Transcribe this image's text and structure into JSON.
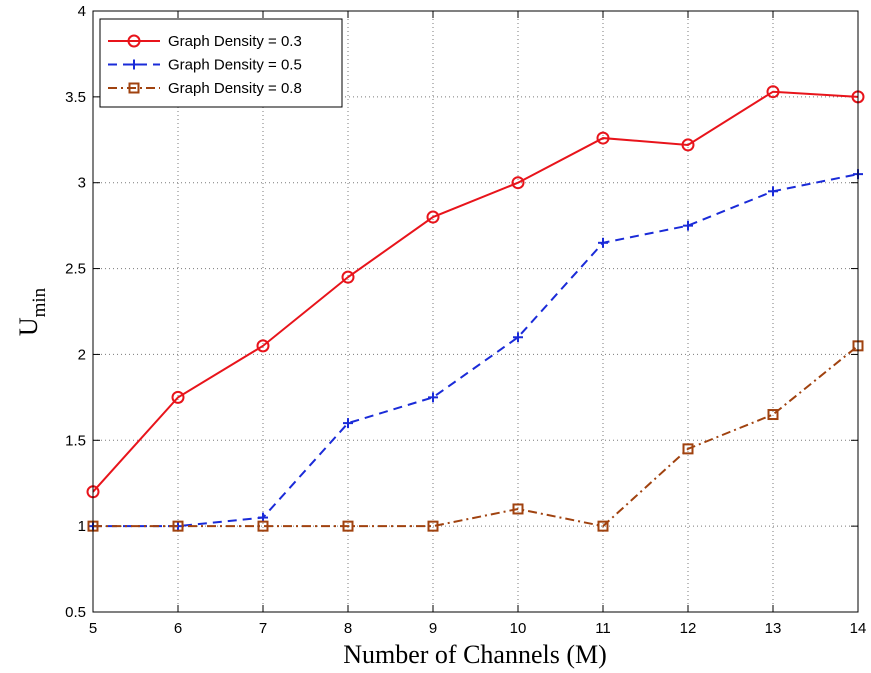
{
  "chart_data": {
    "type": "line",
    "xlabel": "Number of Channels (M)",
    "ylabel_main": "U",
    "ylabel_sub": "min",
    "x": [
      5,
      6,
      7,
      8,
      9,
      10,
      11,
      12,
      13,
      14
    ],
    "xlim": [
      5,
      14
    ],
    "ylim": [
      0.5,
      4
    ],
    "xticks": [
      "5",
      "6",
      "7",
      "8",
      "9",
      "10",
      "11",
      "12",
      "13",
      "14"
    ],
    "yticks": [
      "0.5",
      "1",
      "1.5",
      "2",
      "2.5",
      "3",
      "3.5",
      "4"
    ],
    "grid": true,
    "legend_position": "top-left",
    "series": [
      {
        "name": "Graph Density = 0.3",
        "values": [
          1.2,
          1.75,
          2.05,
          2.45,
          2.8,
          3.0,
          3.26,
          3.22,
          3.53,
          3.5
        ],
        "color": "#e8141b",
        "marker": "circle",
        "line_style": "solid"
      },
      {
        "name": "Graph Density = 0.5",
        "values": [
          1.0,
          1.0,
          1.05,
          1.6,
          1.75,
          2.1,
          2.65,
          2.75,
          2.95,
          3.05
        ],
        "color": "#1a2bd8",
        "marker": "plus",
        "line_style": "dashed"
      },
      {
        "name": "Graph Density = 0.8",
        "values": [
          1.0,
          1.0,
          1.0,
          1.0,
          1.0,
          1.1,
          1.0,
          1.45,
          1.65,
          2.05
        ],
        "color": "#a0420f",
        "marker": "square",
        "line_style": "dashdot"
      }
    ]
  }
}
